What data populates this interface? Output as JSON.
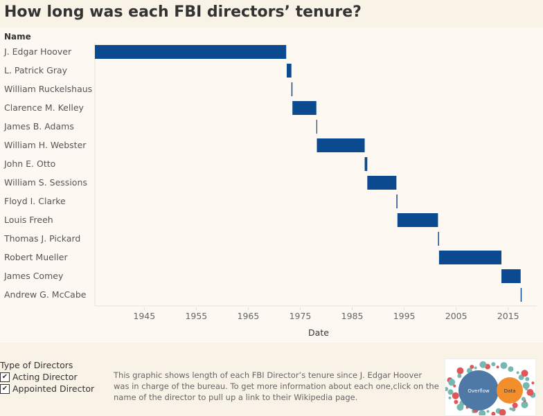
{
  "title": "How long was each FBI directors’ tenure?",
  "chart_data": {
    "type": "gantt",
    "title": "How long was each FBI directors’ tenure?",
    "ylabel": "Name",
    "xlabel": "Date",
    "xlim": [
      1935.5,
      2020.5
    ],
    "xticks": [
      1945,
      1955,
      1965,
      1975,
      1985,
      1995,
      2005,
      2015
    ],
    "bar_color": "#0b4a8f",
    "rows": [
      {
        "name": "J. Edgar Hoover",
        "start": 1935.5,
        "end": 1972.3
      },
      {
        "name": "L. Patrick Gray",
        "start": 1972.4,
        "end": 1973.3
      },
      {
        "name": "William Ruckelshaus",
        "start": 1973.3,
        "end": 1973.5
      },
      {
        "name": "Clarence M. Kelley",
        "start": 1973.5,
        "end": 1978.1
      },
      {
        "name": "James B. Adams",
        "start": 1978.1,
        "end": 1978.2
      },
      {
        "name": "William H. Webster",
        "start": 1978.2,
        "end": 1987.4
      },
      {
        "name": "John E. Otto",
        "start": 1987.4,
        "end": 1987.9
      },
      {
        "name": "William S. Sessions",
        "start": 1987.9,
        "end": 1993.5
      },
      {
        "name": "Floyd I. Clarke",
        "start": 1993.5,
        "end": 1993.7
      },
      {
        "name": "Louis Freeh",
        "start": 1993.7,
        "end": 2001.5
      },
      {
        "name": "Thomas J. Pickard",
        "start": 2001.5,
        "end": 2001.7
      },
      {
        "name": "Robert Mueller",
        "start": 2001.7,
        "end": 2013.7
      },
      {
        "name": "James Comey",
        "start": 2013.7,
        "end": 2017.4
      },
      {
        "name": "Andrew G. McCabe",
        "start": 2017.4,
        "end": 2017.6
      }
    ]
  },
  "legend": {
    "title": "Type of Directors",
    "items": [
      "Acting Director",
      "Appointed Director"
    ],
    "check": "✔"
  },
  "description": "This graphic shows length of each FBI Director’s tenure since J. Edgar Hoover was in charge of the bureau. To get more information about each one,click on the name of the director to pull up a link to their Wikipedia page.",
  "logo": {
    "left": "Overflow",
    "right": "Data"
  }
}
